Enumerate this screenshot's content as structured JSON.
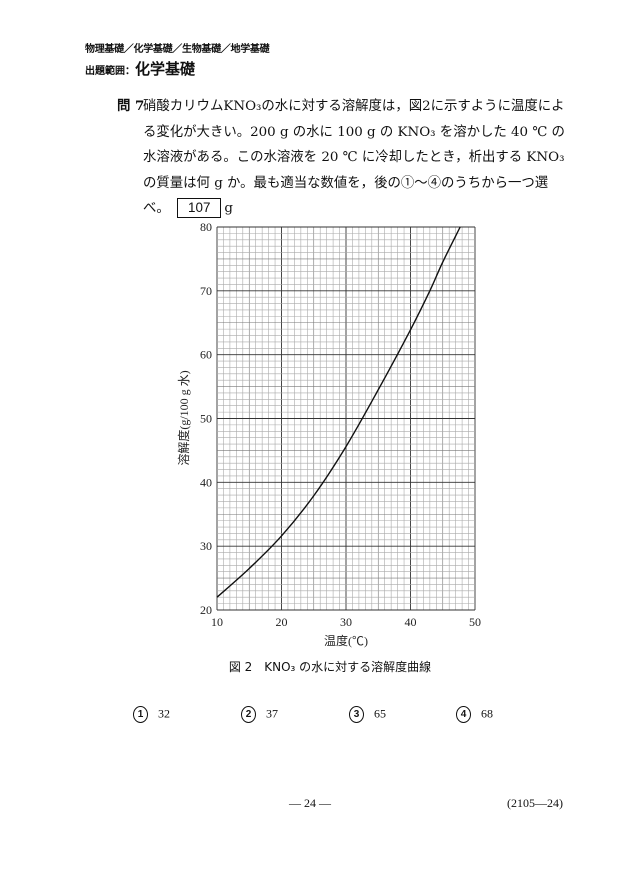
{
  "header": {
    "subjects": "物理基礎／化学基礎／生物基礎／地学基礎",
    "scope_label": "出題範囲：",
    "scope_value": "化学基礎"
  },
  "question": {
    "number": "問 7",
    "text_before_box": "硝酸カリウムKNO₃の水に対する溶解度は，図2に示すように温度による変化が大きい。200 g の水に 100 g の KNO₃ を溶かした 40 ℃ の水溶液がある。この水溶液を 20 ℃ に冷却したとき，析出する KNO₃ の質量は何 g か。最も適当な数値を，後の①～④のうちから一つ選べ。",
    "answer_box": "107",
    "unit": "g"
  },
  "chart_data": {
    "type": "line",
    "xlabel": "温度(℃)",
    "ylabel": "溶解度(g/100 g 水)",
    "xlim": [
      10,
      50
    ],
    "ylim": [
      20,
      80
    ],
    "xticks": [
      "10",
      "20",
      "30",
      "40",
      "50"
    ],
    "yticks": [
      "20",
      "30",
      "40",
      "50",
      "60",
      "70",
      "80"
    ],
    "grid": true,
    "series": [
      {
        "x": [
          10,
          15,
          20,
          25,
          30,
          35,
          40,
          43,
          45,
          47.7
        ],
        "y": [
          22,
          26.5,
          31.6,
          37.9,
          45.6,
          54.5,
          63.9,
          70,
          74.5,
          80
        ]
      }
    ],
    "line_color": "#111111"
  },
  "figure_caption": "図 2　KNO₃ の水に対する溶解度曲線",
  "choices": [
    {
      "mark": "1",
      "value": "32"
    },
    {
      "mark": "2",
      "value": "37"
    },
    {
      "mark": "3",
      "value": "65"
    },
    {
      "mark": "4",
      "value": "68"
    }
  ],
  "footer": {
    "page": "— 24 —",
    "code": "(2105—24)"
  }
}
